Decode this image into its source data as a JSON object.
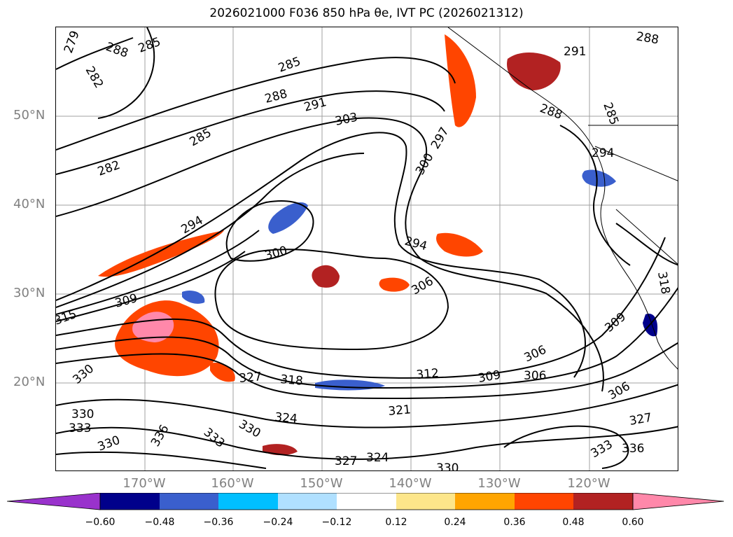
{
  "title": "2026021000 F036 850 hPa θe, IVT PC (2026021312)",
  "lat_labels": [
    "50°N",
    "40°N",
    "30°N",
    "20°N"
  ],
  "lon_labels": [
    "170°W",
    "160°W",
    "150°W",
    "140°W",
    "130°W",
    "120°W"
  ],
  "colorbar": {
    "ticks": [
      "−0.60",
      "−0.48",
      "−0.36",
      "−0.24",
      "−0.12",
      "0.12",
      "0.24",
      "0.36",
      "0.48",
      "0.60"
    ],
    "colors": [
      "#9932cc",
      "#00008b",
      "#3a5fcd",
      "#00bfff",
      "#b0e0ff",
      "#ffffff",
      "#fde68a",
      "#ffa500",
      "#ff4500",
      "#b22222",
      "#ff88aa"
    ],
    "extend": "both"
  },
  "contour_labels": [
    "279",
    "288",
    "285",
    "282",
    "285",
    "288",
    "291",
    "303",
    "282",
    "285",
    "300",
    "297",
    "291",
    "288",
    "285",
    "288",
    "294",
    "294",
    "300",
    "294",
    "306",
    "309",
    "306",
    "315",
    "309",
    "318",
    "312",
    "309",
    "306",
    "330",
    "327",
    "330",
    "333",
    "324",
    "321",
    "330",
    "306",
    "327",
    "336",
    "333",
    "330",
    "333",
    "336",
    "327",
    "324",
    "330",
    "318"
  ],
  "grid_color": "#a0a0a0"
}
